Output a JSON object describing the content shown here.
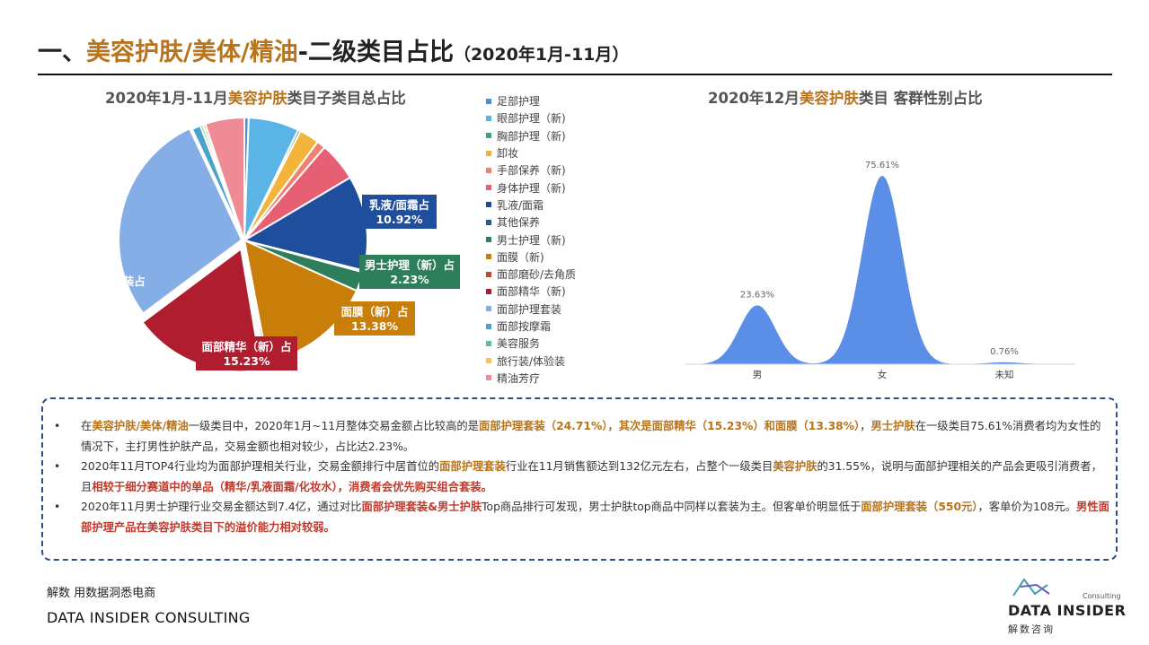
{
  "header": {
    "prefix": "一、",
    "accent": "美容护肤/美体/精油",
    "main": "-二级类目占比",
    "sub": "（2020年1月-11月）"
  },
  "pie_title": {
    "pre": "2020年1月-11月",
    "accent": "美容护肤",
    "post": "类目子类目总占比"
  },
  "area_title": {
    "pre": "2020年12月",
    "accent": "美容护肤",
    "post": "类目 客群性别占比"
  },
  "chart_data": [
    {
      "type": "pie",
      "categories": [
        "足部护理",
        "眼部护理（新)",
        "胸部护理（新)",
        "卸妆",
        "手部保养（新)",
        "身体护理（新)",
        "乳液/面霜",
        "其他保养",
        "男士护理（新)",
        "面膜（新)",
        "面部磨砂/去角质",
        "面部精华（新)",
        "面部护理套装",
        "面部按摩霜",
        "美容服务",
        "旅行装/体验装",
        "精油芳疗"
      ],
      "values": [
        0.5,
        5.8,
        0.3,
        2.3,
        1.0,
        4.5,
        10.92,
        0.2,
        2.23,
        13.38,
        0.3,
        15.23,
        24.71,
        1.0,
        0.3,
        0.3,
        4.5
      ],
      "colors": [
        "#4e8fd6",
        "#5ab4e6",
        "#3f9f8c",
        "#f2b43a",
        "#f08070",
        "#e75f73",
        "#1f4e9c",
        "#2a5a8a",
        "#2e7d5b",
        "#c97e0a",
        "#c04a3a",
        "#b01d2e",
        "#86aee6",
        "#4aa3c9",
        "#5bbf9f",
        "#f2c55a",
        "#ee8b95"
      ],
      "data_labels": [
        {
          "category": "乳液/面霜",
          "name": "乳液/面霜占",
          "value": "10.92%"
        },
        {
          "category": "男士护理（新)",
          "name": "男士护理（新）占",
          "value": "2.23%"
        },
        {
          "category": "面膜（新)",
          "name": "面膜（新）占",
          "value": "13.38%"
        },
        {
          "category": "面部精华（新)",
          "name": "面部精华（新）占",
          "value": "15.23%"
        },
        {
          "category": "面部护理套装",
          "name": "面部护理套装占",
          "value": "24.71%"
        }
      ],
      "legend_position": "right"
    },
    {
      "type": "area",
      "categories": [
        "男",
        "女",
        "未知"
      ],
      "values": [
        23.63,
        75.61,
        0.76
      ],
      "value_labels": [
        "23.63%",
        "75.61%",
        "0.76%"
      ],
      "color": "#5b8ee6"
    }
  ],
  "summary": {
    "b1": [
      {
        "t": "在",
        "s": ""
      },
      {
        "t": "美容护肤/美体/精油",
        "s": "hl"
      },
      {
        "t": "一级类目中，2020年1月~11月整体交易金额占比较高的是",
        "s": ""
      },
      {
        "t": "面部护理套装（24.71%），其次是面部精华（15.23%）和面膜（13.38%）",
        "s": "hl"
      },
      {
        "t": "，",
        "s": ""
      },
      {
        "t": "男士护肤",
        "s": "hl"
      },
      {
        "t": "在一级类目75.61%消费者均为女性的情况下，主打男性护肤产品，交易金额也相对较少，占比达2.23%。",
        "s": ""
      }
    ],
    "b2": [
      {
        "t": "2020年11月TOP4行业均为面部护理相关行业，交易金额排行中居首位的",
        "s": ""
      },
      {
        "t": "面部护理套装",
        "s": "hl"
      },
      {
        "t": "行业在11月销售额达到132亿元左右，占整个一级类目",
        "s": ""
      },
      {
        "t": "美容护肤",
        "s": "hl"
      },
      {
        "t": "的31.55%，说明与面部护理相关的产品会更吸引消费者，且",
        "s": ""
      },
      {
        "t": "相较于细分赛道中的单品（精华/乳液面霜/化妆水），消费者会优先购买组合套装。",
        "s": "hr"
      }
    ],
    "b3": [
      {
        "t": "2020年11月男士护理行业交易金额达到7.4亿，通过对比",
        "s": ""
      },
      {
        "t": "面部护理套装&男士护肤",
        "s": "hr"
      },
      {
        "t": "Top商品排行可发现，男士护肤top商品中同样以套装为主。但客单价明显低于",
        "s": ""
      },
      {
        "t": "面部护理套装（550元）",
        "s": "hl"
      },
      {
        "t": "，客单价为108元。",
        "s": ""
      },
      {
        "t": "男性面部护理产品在美容护肤类目下的溢价能力相对较弱。",
        "s": "hr"
      }
    ]
  },
  "footer": {
    "tagline": "解数 用数据洞悉电商",
    "brand": "DATA INSIDER CONSULTING",
    "logo_consulting": "Consulting",
    "logo_name": "DATA INSIDER",
    "logo_cn": "解数咨询"
  }
}
